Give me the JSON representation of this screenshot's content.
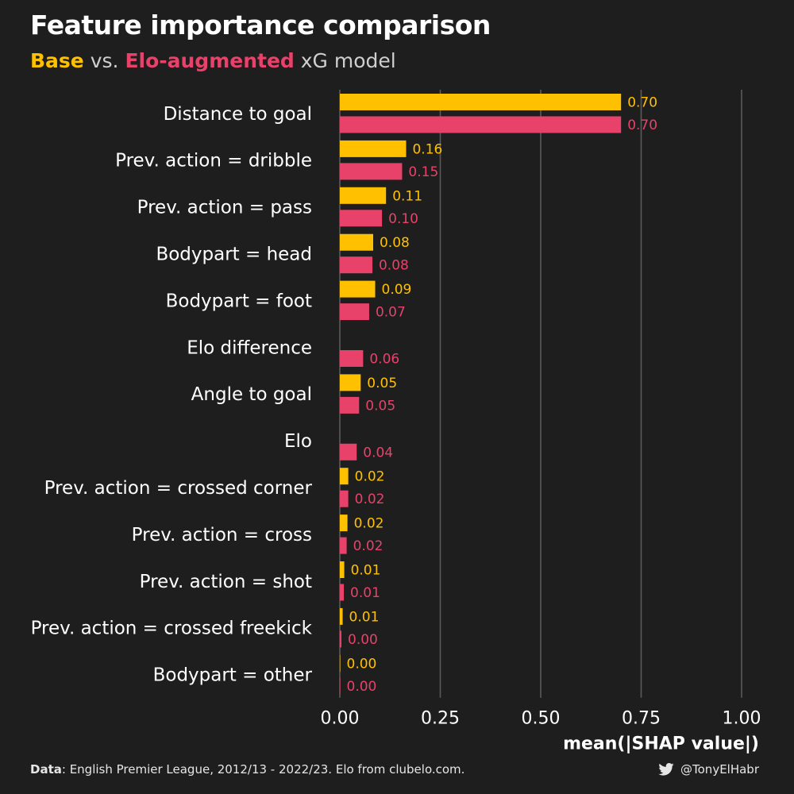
{
  "header": {
    "title": "Feature importance comparison",
    "subtitle_base": "Base",
    "subtitle_vs": " vs. ",
    "subtitle_aug": "Elo-augmented",
    "subtitle_tail": " xG model"
  },
  "footer": {
    "data_label": "Data",
    "data_text": ": English Premier League, 2012/13 - 2022/23. Elo from clubelo.com.",
    "twitter_icon": "twitter-bird-icon",
    "handle": "@TonyElHabr"
  },
  "colors": {
    "background": "#1e1e1e",
    "base": "#ffc000",
    "augmented": "#e8426b",
    "grid": "#5a5a5a",
    "text": "#ffffff"
  },
  "chart_data": {
    "type": "bar",
    "orientation": "horizontal",
    "categories": [
      "Distance to goal",
      "Prev. action = dribble",
      "Prev. action = pass",
      "Bodypart = head",
      "Bodypart = foot",
      "Elo difference",
      "Angle to goal",
      "Elo",
      "Prev. action = crossed corner",
      "Prev. action = cross",
      "Prev. action = shot",
      "Prev. action = crossed freekick",
      "Bodypart = other"
    ],
    "series": [
      {
        "color": "#ffc000",
        "values": [
          0.7,
          0.165,
          0.115,
          0.083,
          0.088,
          null,
          0.052,
          null,
          0.021,
          0.019,
          0.011,
          0.007,
          0.001
        ],
        "labels": [
          "0.70",
          "0.16",
          "0.11",
          "0.08",
          "0.09",
          "",
          "0.05",
          "",
          "0.02",
          "0.02",
          "0.01",
          "0.01",
          "0.00"
        ]
      },
      {
        "color": "#e8426b",
        "values": [
          0.7,
          0.155,
          0.105,
          0.081,
          0.073,
          0.058,
          0.048,
          0.042,
          0.021,
          0.017,
          0.01,
          0.004,
          0.001
        ],
        "labels": [
          "0.70",
          "0.15",
          "0.10",
          "0.08",
          "0.07",
          "0.06",
          "0.05",
          "0.04",
          "0.02",
          "0.02",
          "0.01",
          "0.00",
          "0.00"
        ]
      }
    ],
    "x_ticks": [
      "0.00",
      "0.25",
      "0.50",
      "0.75",
      "1.00"
    ],
    "x_tick_values": [
      0,
      0.25,
      0.5,
      0.75,
      1.0
    ],
    "xlim": [
      0,
      1.0
    ],
    "xlabel": "mean(|SHAP value|)",
    "grid": "vertical"
  }
}
